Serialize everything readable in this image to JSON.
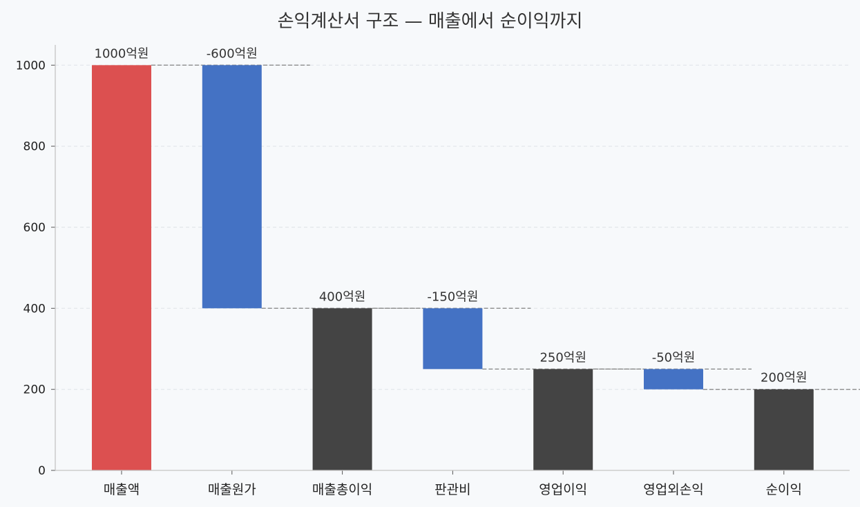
{
  "chart_data": {
    "type": "bar",
    "subtype": "waterfall",
    "title": "손익계산서 구조 — 매출에서 순이익까지",
    "xlabel": "",
    "ylabel": "",
    "categories": [
      "매출액",
      "매출원가",
      "매출총이익",
      "판관비",
      "영업이익",
      "영업외손익",
      "순이익"
    ],
    "bars": [
      {
        "category": "매출액",
        "kind": "total",
        "start": 0,
        "end": 1000,
        "label": "1000억원"
      },
      {
        "category": "매출원가",
        "kind": "decrease",
        "start": 1000,
        "end": 400,
        "label": "-600억원"
      },
      {
        "category": "매출총이익",
        "kind": "subtotal",
        "start": 0,
        "end": 400,
        "label": "400억원"
      },
      {
        "category": "판관비",
        "kind": "decrease",
        "start": 400,
        "end": 250,
        "label": "-150억원"
      },
      {
        "category": "영업이익",
        "kind": "subtotal",
        "start": 0,
        "end": 250,
        "label": "250억원"
      },
      {
        "category": "영업외손익",
        "kind": "decrease",
        "start": 250,
        "end": 200,
        "label": "-50억원"
      },
      {
        "category": "순이익",
        "kind": "subtotal",
        "start": 0,
        "end": 200,
        "label": "200억원"
      }
    ],
    "ylim": [
      0,
      1050
    ],
    "yticks": [
      0,
      200,
      400,
      600,
      800,
      1000
    ],
    "grid": true,
    "colors": {
      "total": "#dc5050",
      "decrease": "#4472c4",
      "subtotal": "#444444",
      "connector": "#8c8c8c",
      "grid": "#e2e6ea",
      "axis": "#c4c4c4"
    }
  }
}
